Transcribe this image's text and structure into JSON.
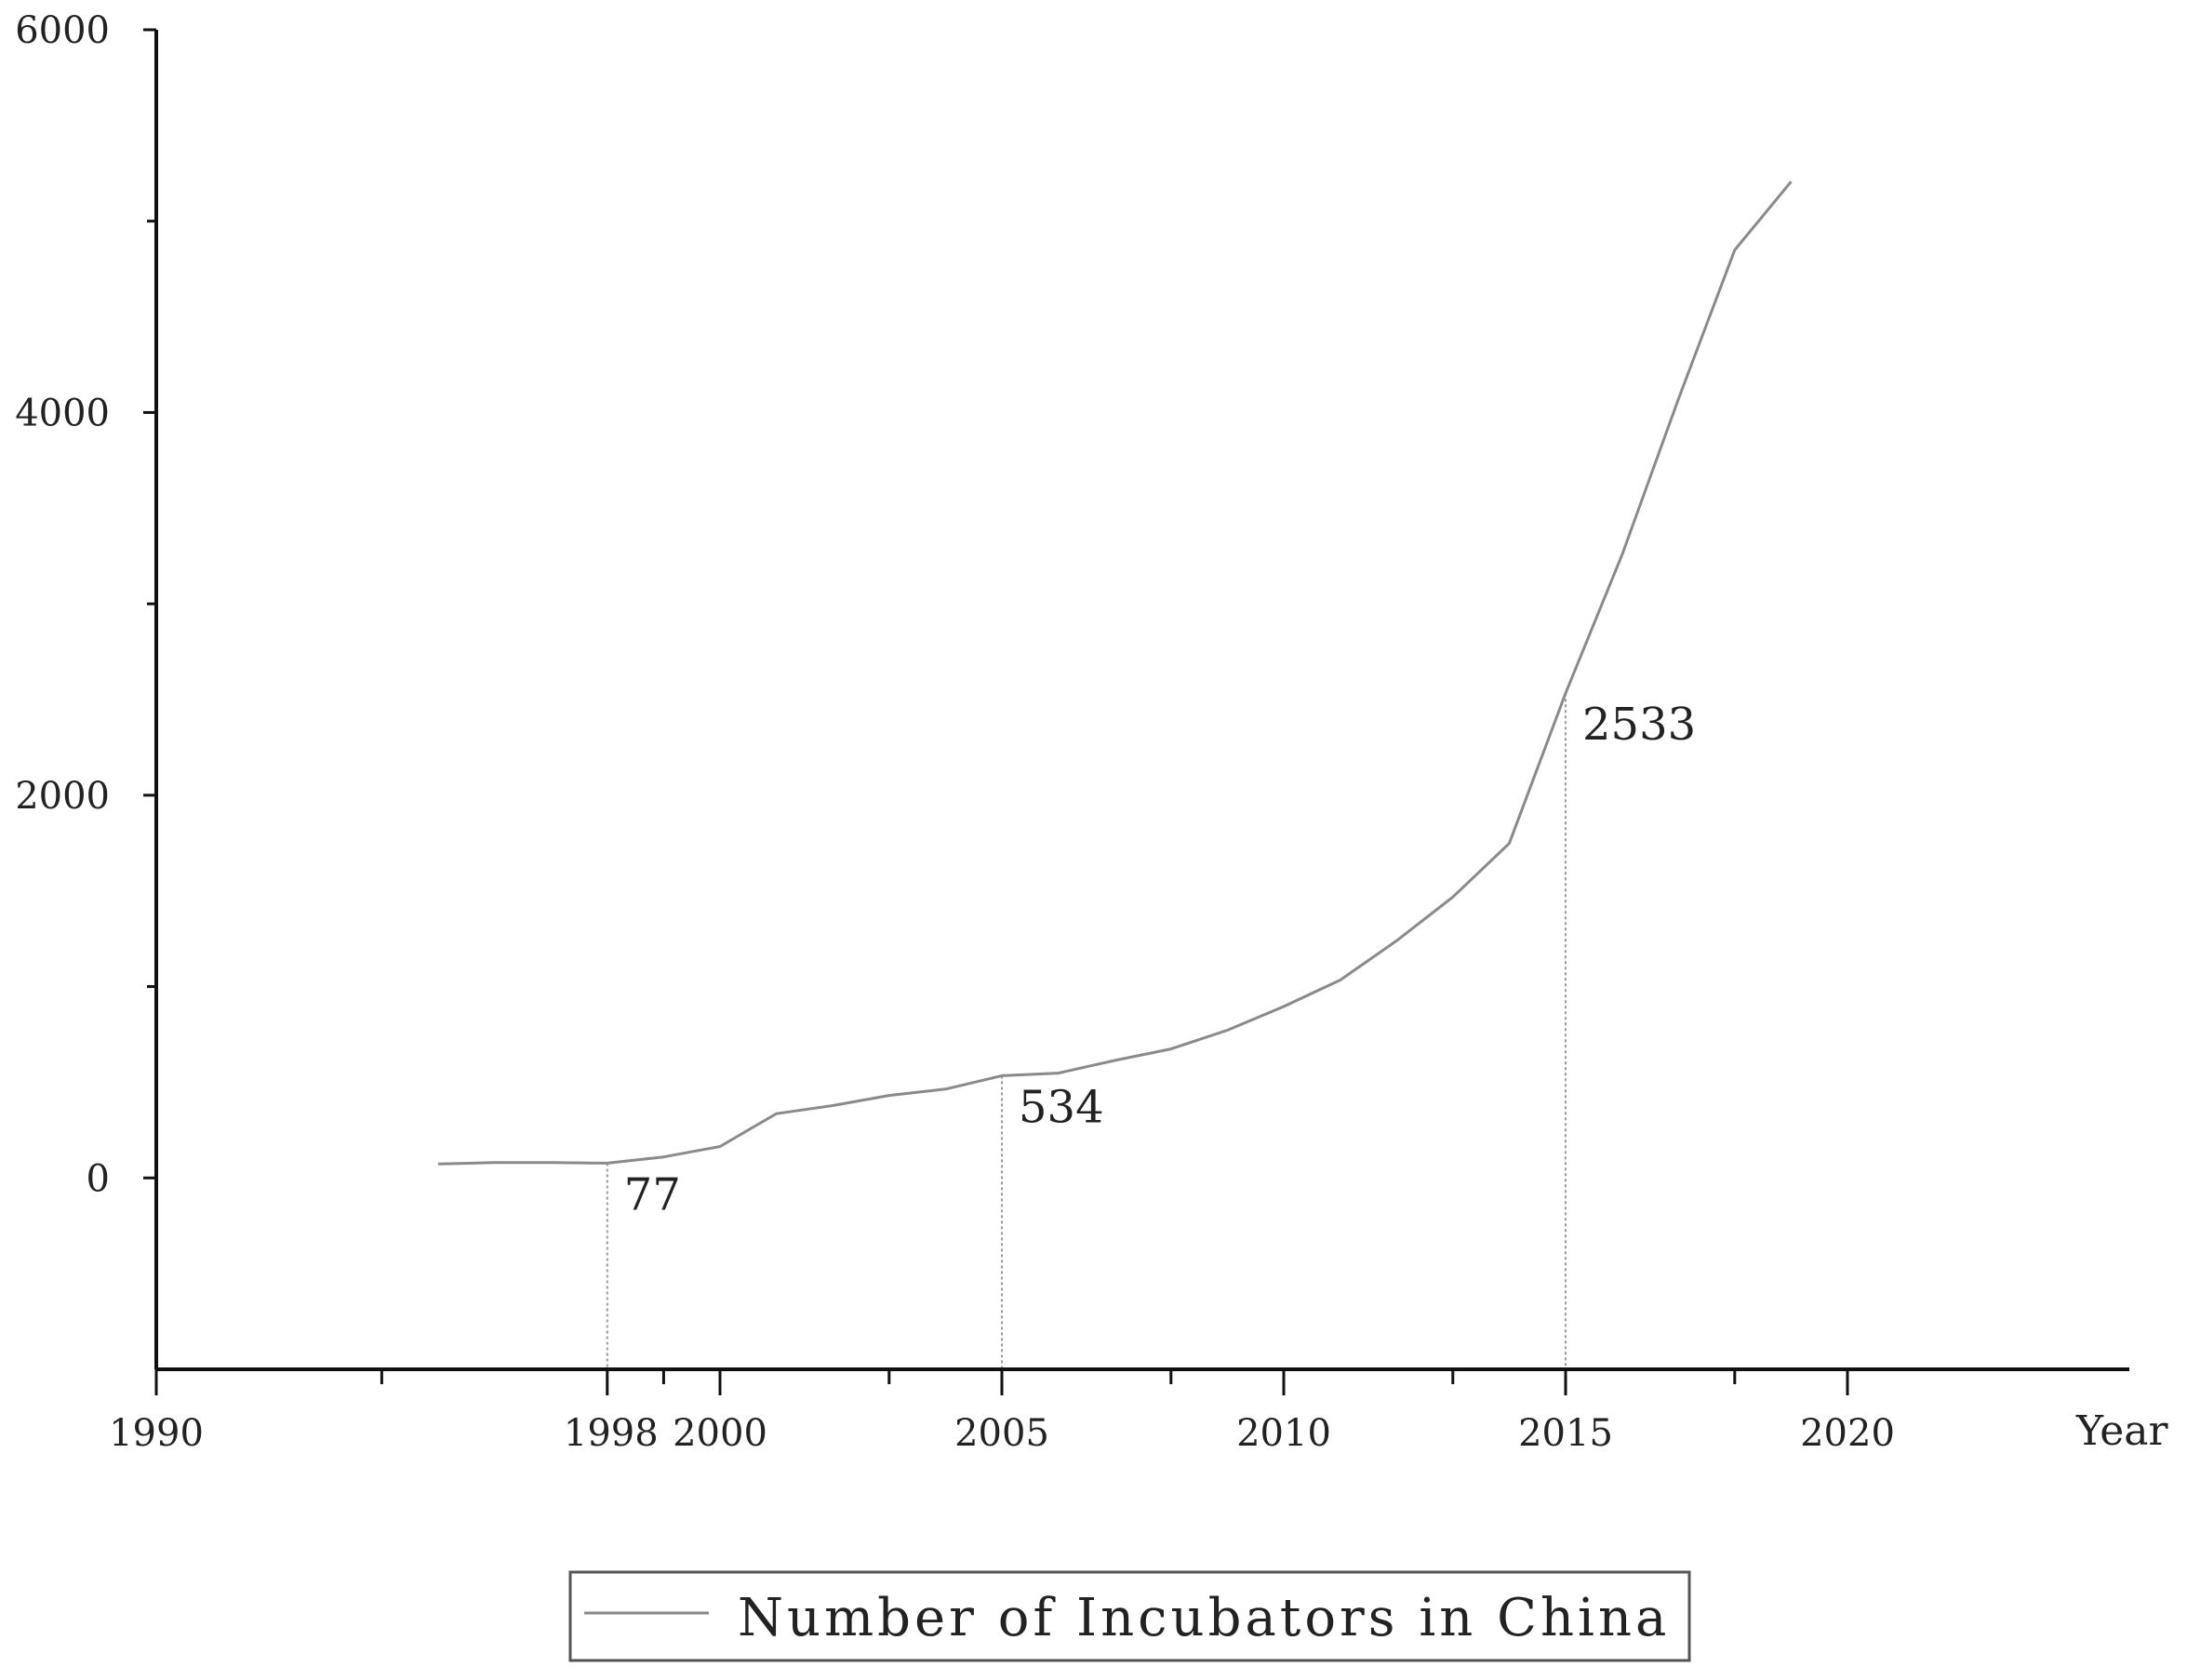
{
  "chart_data": {
    "type": "line",
    "title": "",
    "xlabel": "Year",
    "ylabel": "",
    "xlim": [
      1990,
      2025
    ],
    "ylim": [
      -1000,
      6000
    ],
    "grid": false,
    "legend_position": "bottom-center",
    "x_ticks_major": [
      1990,
      2000,
      2005,
      2010,
      2015,
      2020
    ],
    "x_ticks_major_labels": [
      "1990",
      "2000",
      "2005",
      "2010",
      "2015",
      "2020"
    ],
    "x_ticks_minor": [
      1994,
      1999,
      2003,
      2008,
      2013,
      2018
    ],
    "x_extra_label": {
      "x": 1998,
      "label": "1998"
    },
    "y_ticks_labeled": [
      0,
      2000,
      4000,
      6000
    ],
    "y_ticks_labeled_text": [
      "0",
      "2000",
      "4000",
      "6000"
    ],
    "y_ticks_minor": [
      1000,
      3000,
      5000
    ],
    "series": [
      {
        "name": "Number of Incubators in China",
        "color": "#8a8a8a",
        "x": [
          1995,
          1996,
          1997,
          1998,
          1999,
          2000,
          2001,
          2002,
          2003,
          2004,
          2005,
          2006,
          2007,
          2008,
          2009,
          2010,
          2011,
          2012,
          2013,
          2014,
          2015,
          2016,
          2017,
          2018,
          2019
        ],
        "values": [
          73,
          80,
          80,
          77,
          110,
          164,
          336,
          378,
          431,
          464,
          534,
          548,
          614,
          674,
          772,
          896,
          1034,
          1239,
          1468,
          1748,
          2533,
          3255,
          4069,
          4849,
          5206
        ]
      }
    ],
    "annotations": [
      {
        "x": 1998,
        "y": 77,
        "label": "77"
      },
      {
        "x": 2005,
        "y": 534,
        "label": "534"
      },
      {
        "x": 2015,
        "y": 2533,
        "label": "2533"
      }
    ]
  }
}
